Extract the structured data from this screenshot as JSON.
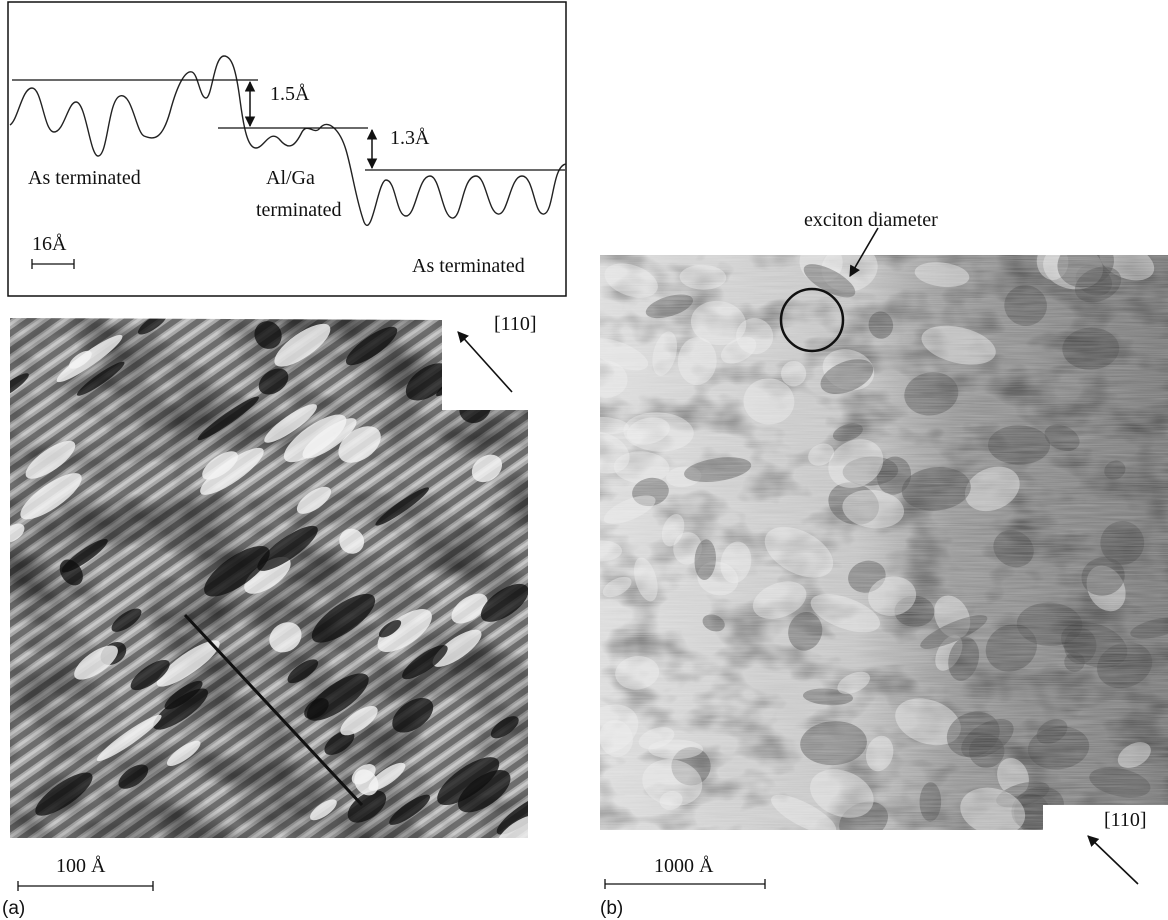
{
  "panel_a": {
    "profile": {
      "step_labels": [
        "1.5Å",
        "1.3Å"
      ],
      "left_region": "As terminated",
      "middle_region": [
        "Al/Ga",
        "terminated"
      ],
      "right_region": "As terminated",
      "scale_label": "16Å"
    },
    "direction": "[110]",
    "scale_label": "100 Å",
    "caption": "(a)"
  },
  "panel_b": {
    "annotation": "exciton diameter",
    "direction": "[110]",
    "scale_label": "1000 Å",
    "caption": "(b)"
  }
}
